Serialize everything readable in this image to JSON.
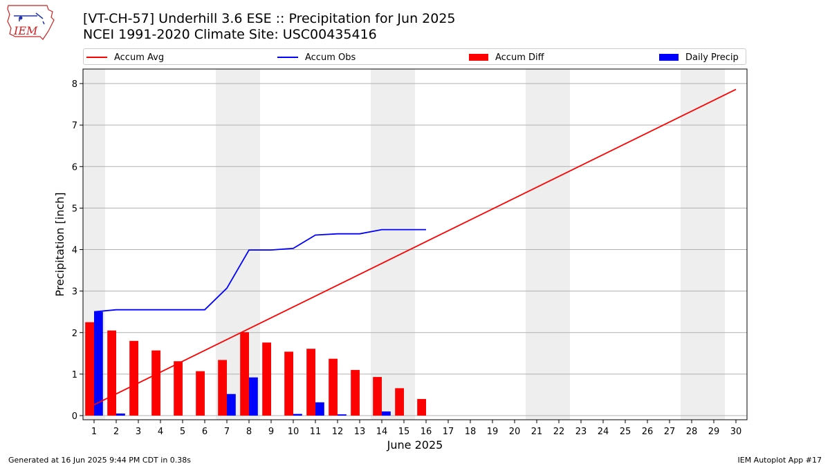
{
  "header": {
    "title": "[VT-CH-57] Underhill 3.6 ESE :: Precipitation for Jun 2025",
    "subtitle": "NCEI 1991-2020 Climate Site: USC00435416",
    "logo_text": "IEM"
  },
  "footer": {
    "left": "Generated at 16 Jun 2025 9:44 PM CDT in 0.38s",
    "right": "IEM Autoplot App #17"
  },
  "legend": [
    {
      "label": "Accum Avg",
      "kind": "line",
      "color": "#ff0000"
    },
    {
      "label": "Accum Obs",
      "kind": "line",
      "color": "#0000ff"
    },
    {
      "label": "Accum Diff",
      "kind": "bar",
      "color": "#ff0000"
    },
    {
      "label": "Daily Precip",
      "kind": "bar",
      "color": "#0000ff"
    }
  ],
  "chart_data": {
    "type": "bar",
    "xlabel": "June 2025",
    "ylabel": "Precipitation [inch]",
    "xlim": [
      0.5,
      30.5
    ],
    "ylim": [
      -0.1,
      8.35
    ],
    "yticks": [
      0,
      1,
      2,
      3,
      4,
      5,
      6,
      7,
      8
    ],
    "days": [
      1,
      2,
      3,
      4,
      5,
      6,
      7,
      8,
      9,
      10,
      11,
      12,
      13,
      14,
      15,
      16,
      17,
      18,
      19,
      20,
      21,
      22,
      23,
      24,
      25,
      26,
      27,
      28,
      29,
      30
    ],
    "weekend_shading": [
      [
        0.5,
        1.5
      ],
      [
        6.5,
        8.5
      ],
      [
        13.5,
        15.5
      ],
      [
        20.5,
        22.5
      ],
      [
        27.5,
        29.5
      ]
    ],
    "grid": true,
    "series": [
      {
        "name": "Accum Avg",
        "type": "line",
        "color": "#ff0000",
        "x": [
          1,
          30
        ],
        "values": [
          0.26,
          7.86
        ]
      },
      {
        "name": "Accum Obs",
        "type": "line",
        "color": "#0000ff",
        "x": [
          1,
          2,
          3,
          4,
          5,
          6,
          7,
          8,
          9,
          10,
          11,
          12,
          13,
          14,
          15,
          16
        ],
        "values": [
          2.5,
          2.55,
          2.55,
          2.55,
          2.55,
          2.55,
          3.07,
          3.99,
          3.99,
          4.03,
          4.35,
          4.38,
          4.38,
          4.48,
          4.48,
          4.48
        ]
      },
      {
        "name": "Accum Diff",
        "type": "bar",
        "color": "#ff0000",
        "x": [
          1,
          2,
          3,
          4,
          5,
          6,
          7,
          8,
          9,
          10,
          11,
          12,
          13,
          14,
          15,
          16
        ],
        "values": [
          2.25,
          2.05,
          1.8,
          1.57,
          1.31,
          1.07,
          1.34,
          2.01,
          1.76,
          1.54,
          1.61,
          1.37,
          1.1,
          0.93,
          0.66,
          0.4
        ]
      },
      {
        "name": "Daily Precip",
        "type": "bar",
        "color": "#0000ff",
        "x": [
          1,
          2,
          3,
          4,
          5,
          6,
          7,
          8,
          9,
          10,
          11,
          12,
          13,
          14,
          15,
          16
        ],
        "values": [
          2.5,
          0.05,
          0.0,
          0.0,
          0.0,
          0.0,
          0.52,
          0.92,
          0.0,
          0.04,
          0.32,
          0.03,
          0.0,
          0.1,
          0.0,
          0.0
        ]
      }
    ]
  }
}
